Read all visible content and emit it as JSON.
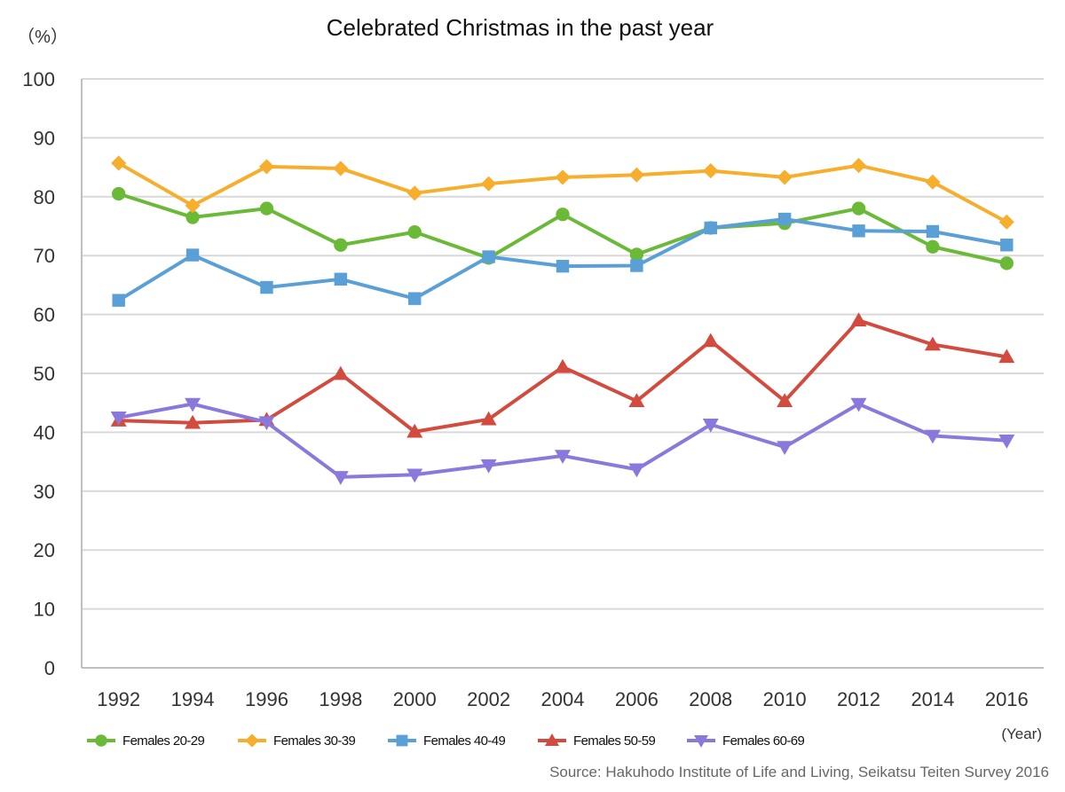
{
  "chart_data": {
    "type": "line",
    "title": "Celebrated Christmas in the past year",
    "y_unit": "（%）",
    "x_unit": "(Year)",
    "source": "Source: Hakuhodo Institute of Life and Living, Seikatsu Teiten Survey 2016",
    "ylim": [
      0,
      100
    ],
    "y_ticks": [
      0,
      10,
      20,
      30,
      40,
      50,
      60,
      70,
      80,
      90,
      100
    ],
    "grid": true,
    "legend_position": "bottom",
    "categories": [
      "1992",
      "1994",
      "1996",
      "1998",
      "2000",
      "2002",
      "2004",
      "2006",
      "2008",
      "2010",
      "2012",
      "2014",
      "2016"
    ],
    "series": [
      {
        "name": "Females 20-29",
        "color": "#6aba37",
        "marker": "circle",
        "values": [
          80.5,
          76.5,
          78,
          71.8,
          74,
          69.6,
          77,
          70.2,
          74.7,
          75.5,
          78,
          71.5,
          68.7
        ]
      },
      {
        "name": "Females 30-39",
        "color": "#f6ae2c",
        "marker": "diamond",
        "values": [
          85.7,
          78.5,
          85.1,
          84.8,
          80.6,
          82.2,
          83.3,
          83.7,
          84.4,
          83.3,
          85.3,
          82.5,
          75.7
        ]
      },
      {
        "name": "Females 40-49",
        "color": "#5a9fd6",
        "marker": "square",
        "values": [
          62.4,
          70.1,
          64.6,
          66,
          62.7,
          69.8,
          68.2,
          68.3,
          74.7,
          76.2,
          74.2,
          74.1,
          71.8
        ]
      },
      {
        "name": "Females 50-59",
        "color": "#d24b3e",
        "marker": "triangle-up",
        "values": [
          42,
          41.6,
          42.1,
          49.9,
          40.1,
          42.2,
          51.1,
          45.3,
          55.5,
          45.3,
          59,
          54.9,
          52.8
        ]
      },
      {
        "name": "Females 60-69",
        "color": "#8b78dc",
        "marker": "triangle-down",
        "values": [
          42.5,
          44.8,
          41.7,
          32.4,
          32.8,
          34.4,
          36,
          33.7,
          41.3,
          37.5,
          44.8,
          39.4,
          38.6
        ]
      }
    ]
  }
}
